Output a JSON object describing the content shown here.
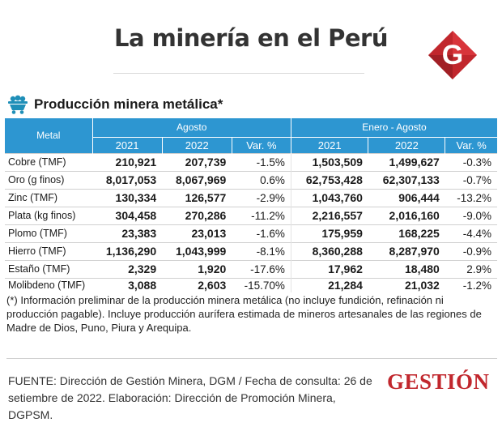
{
  "title": "La minería en el Perú",
  "logo_letter": "G",
  "section_title": "Producción minera metálica*",
  "table": {
    "col_metal": "Metal",
    "group1": "Agosto",
    "group2": "Enero - Agosto",
    "sub": [
      "2021",
      "2022",
      "Var. %",
      "2021",
      "2022",
      "Var. %"
    ],
    "rows": [
      {
        "name": "Cobre (TMF)",
        "a21": "210,921",
        "a22": "207,739",
        "av": "-1.5%",
        "e21": "1,503,509",
        "e22": "1,499,627",
        "ev": "-0.3%"
      },
      {
        "name": "Oro (g finos)",
        "a21": "8,017,053",
        "a22": "8,067,969",
        "av": "0.6%",
        "e21": "62,753,428",
        "e22": "62,307,133",
        "ev": "-0.7%"
      },
      {
        "name": "Zinc (TMF)",
        "a21": "130,334",
        "a22": "126,577",
        "av": "-2.9%",
        "e21": "1,043,760",
        "e22": "906,444",
        "ev": "-13.2%"
      },
      {
        "name": "Plata (kg finos)",
        "a21": "304,458",
        "a22": "270,286",
        "av": "-11.2%",
        "e21": "2,216,557",
        "e22": "2,016,160",
        "ev": "-9.0%"
      },
      {
        "name": "Plomo (TMF)",
        "a21": "23,383",
        "a22": "23,013",
        "av": "-1.6%",
        "e21": "175,959",
        "e22": "168,225",
        "ev": "-4.4%"
      },
      {
        "name": "Hierro (TMF)",
        "a21": "1,136,290",
        "a22": "1,043,999",
        "av": "-8.1%",
        "e21": "8,360,288",
        "e22": "8,287,970",
        "ev": "-0.9%"
      },
      {
        "name": "Estaño (TMF)",
        "a21": "2,329",
        "a22": "1,920",
        "av": "-17.6%",
        "e21": "17,962",
        "e22": "18,480",
        "ev": "2.9%"
      },
      {
        "name": "Molibdeno (TMF)",
        "a21": "3,088",
        "a22": "2,603",
        "av": "-15.70%",
        "e21": "21,284",
        "e22": "21,032",
        "ev": "-1.2%"
      }
    ]
  },
  "note": "(*) Información preliminar de la producción minera metálica (no incluye fundición, refinación ni producción pagable). Incluye producción aurífera estimada de mineros artesanales de las regiones de Madre de Dios, Puno, Piura y Arequipa.",
  "source": "FUENTE: Dirección de Gestión Minera, DGM / Fecha de consulta: 26 de setiembre de 2022. Elaboración: Dirección de Promoción Minera, DGPSM.",
  "brand": "GESTIÓN",
  "colors": {
    "header_blue": "#2d96d1",
    "brand_red": "#c1272d",
    "icon_teal": "#1f8fb8"
  }
}
